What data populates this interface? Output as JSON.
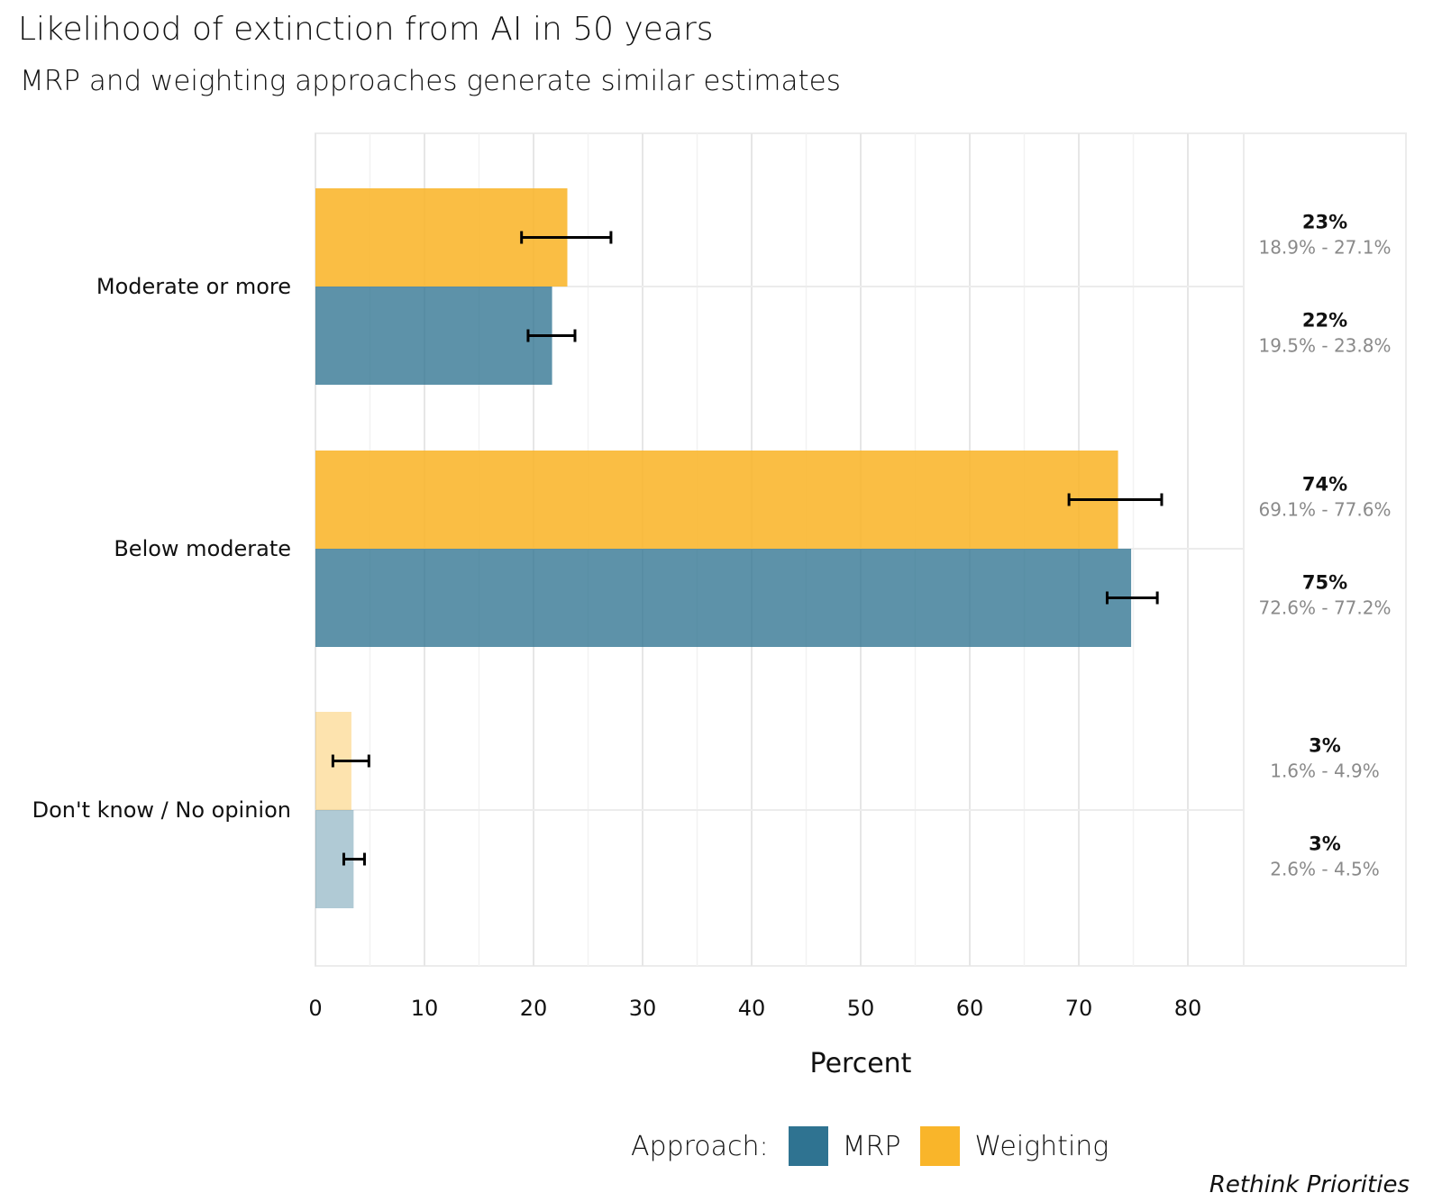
{
  "chart_data": {
    "type": "bar",
    "orientation": "horizontal",
    "title": "Likelihood of extinction from AI in 50 years",
    "subtitle": "MRP and weighting approaches generate similar estimates",
    "xlabel": "Percent",
    "ylabel": "",
    "xlim": [
      0,
      85
    ],
    "x_ticks": [
      "0",
      "10",
      "20",
      "30",
      "40",
      "50",
      "60",
      "70",
      "80"
    ],
    "categories": [
      "Moderate or more",
      "Below moderate",
      "Don't know / No opinion"
    ],
    "series": [
      {
        "name": "Weighting",
        "color": "#f9b52a",
        "values": [
          23.1,
          73.6,
          3.3
        ],
        "ci_low": [
          18.9,
          69.1,
          1.6
        ],
        "ci_high": [
          27.1,
          77.6,
          4.9
        ],
        "labels": [
          "23%",
          "74%",
          "3%"
        ],
        "ci_labels": [
          "18.9% - 27.1%",
          "69.1% - 77.6%",
          "1.6% - 4.9%"
        ]
      },
      {
        "name": "MRP",
        "color": "#2f7391",
        "values": [
          21.7,
          74.8,
          3.5
        ],
        "ci_low": [
          19.5,
          72.6,
          2.6
        ],
        "ci_high": [
          23.8,
          77.2,
          4.5
        ],
        "labels": [
          "22%",
          "75%",
          "3%"
        ],
        "ci_labels": [
          "19.5% - 23.8%",
          "72.6% - 77.2%",
          "2.6% - 4.5%"
        ]
      }
    ],
    "faded_categories": [
      "Don't know / No opinion"
    ],
    "grid": true,
    "legend": {
      "title": "Approach:",
      "placement": "bottom",
      "items": [
        {
          "name": "MRP",
          "color": "#2f7391"
        },
        {
          "name": "Weighting",
          "color": "#f9b52a"
        }
      ]
    }
  },
  "caption": "Rethink Priorities"
}
